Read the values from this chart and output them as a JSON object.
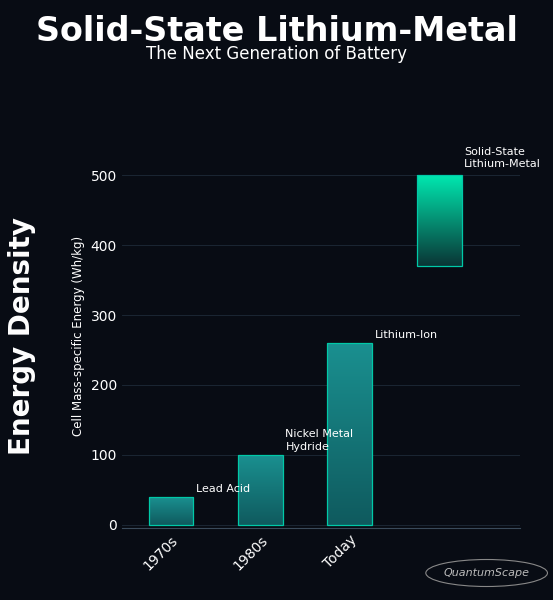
{
  "title": "Solid-State Lithium-Metal",
  "subtitle": "The Next Generation of Battery",
  "ylabel_big": "Energy Density",
  "ylabel_small": "Cell Mass-specific Energy (Wh/kg)",
  "categories": [
    "1970s",
    "1980s",
    "Today",
    ""
  ],
  "bar_labels": [
    "Lead Acid",
    "Nickel Metal\nHydride",
    "Lithium-Ion",
    "Solid-State\nLithium-Metal"
  ],
  "values": [
    40,
    100,
    260,
    500
  ],
  "bar_bottoms": [
    0,
    0,
    0,
    370
  ],
  "bar_tops": [
    40,
    100,
    260,
    500
  ],
  "yticks": [
    0,
    100,
    200,
    300,
    400,
    500
  ],
  "bg_color": "#080c14",
  "bar_colors_bottom": [
    "#0f5a5e",
    "#0f5a5e",
    "#0f5a5e",
    "#0a3535"
  ],
  "bar_colors_top": [
    "#1a9090",
    "#1a9090",
    "#1a9090",
    "#00e8b0"
  ],
  "edge_color": "#00c9a7",
  "axis_color": "#2a3a4a",
  "text_color": "#ffffff",
  "label_color": "#cccccc",
  "quantumscape_text": "QuantumScape",
  "title_fontsize": 24,
  "subtitle_fontsize": 12,
  "ylabel_big_fontsize": 20,
  "ylabel_small_fontsize": 8.5,
  "bar_label_fontsize": 8,
  "tick_fontsize": 10
}
